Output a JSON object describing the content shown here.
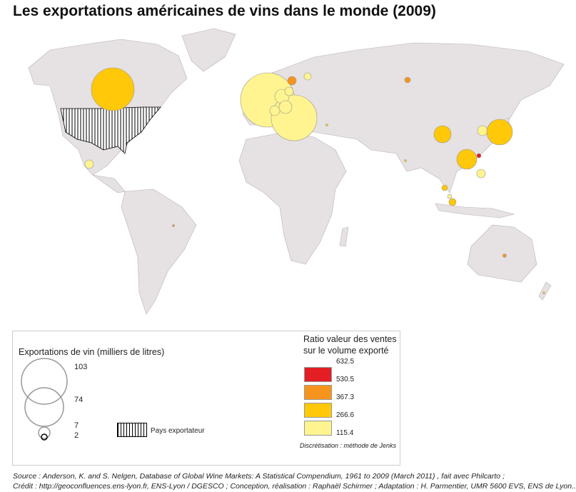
{
  "title": "Les exportations américaines de vins dans le monde (2009)",
  "legend": {
    "size_title": "Exportations de vin (milliers de litres)",
    "size_values": [
      "103",
      "74",
      "7",
      "2"
    ],
    "exporter_label": "Pays exportateur",
    "ratio_title_1": "Ratio valeur des ventes",
    "ratio_title_2": "sur le volume exporté",
    "ratio_breaks": [
      "632.5",
      "530.5",
      "367.3",
      "266.6",
      "115.4"
    ],
    "ratio_colors": [
      "#e31e24",
      "#f7941d",
      "#ffc808",
      "#fff48f"
    ],
    "method": "Discrétisation : méthode de Jenks"
  },
  "source": "Source : Anderson, K. and S. Nelgen, Database of Global Wine Markets: A Statistical Compendium, 1961 to 2009 (March 2011) , fait avec Philcarto ;",
  "credit": "Crédit : http://geoconfluences.ens-lyon.fr, ENS-Lyon / DGESCO ; Conception, réalisation : Raphaël Schirmer ; Adaptation : H. Parmentier, UMR 5600 EVS, ENS de Lyon.."
}
